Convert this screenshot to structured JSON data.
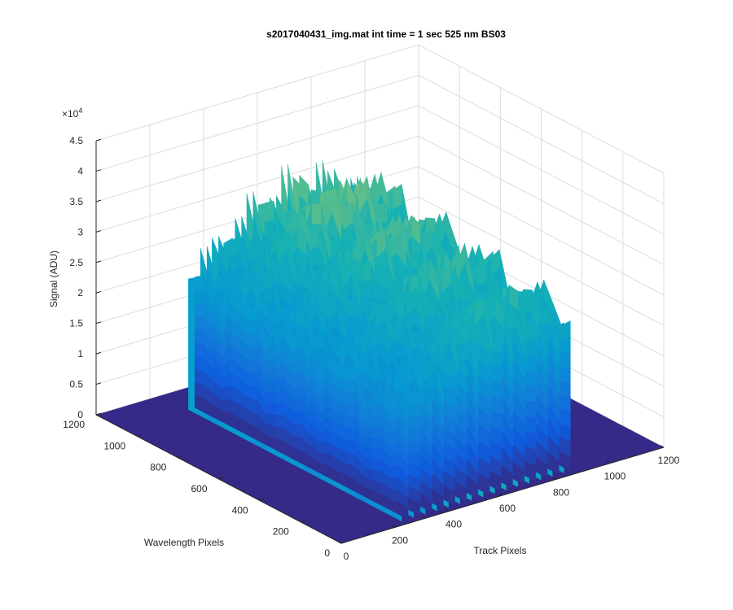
{
  "chart_data": {
    "type": "surface",
    "title": "s2017040431_img.mat int time = 1 sec  525 nm BS03",
    "xlabel": "Track Pixels",
    "ylabel": "Wavelength Pixels",
    "zlabel": "Signal (ADU)",
    "xlim": [
      0,
      1200
    ],
    "ylim": [
      0,
      1200
    ],
    "zlim": [
      0,
      45000
    ],
    "x_ticks": [
      "0",
      "200",
      "400",
      "600",
      "800",
      "1000",
      "1200"
    ],
    "y_ticks": [
      "0",
      "200",
      "400",
      "600",
      "800",
      "1000",
      "1200"
    ],
    "z_ticks": [
      "0",
      "0.5",
      "1",
      "1.5",
      "2",
      "2.5",
      "3",
      "3.5",
      "4",
      "4.5"
    ],
    "z_exponent_base": "×10",
    "z_exponent_power": "4",
    "grid": true,
    "colormap": "parula",
    "tracks": {
      "x_centers": [
        255,
        300,
        343,
        386,
        429,
        472,
        515,
        558,
        601,
        644,
        687,
        730,
        773,
        816,
        859
      ],
      "y_range": [
        24,
        1068
      ],
      "peak_signal": [
        25000,
        27000,
        28000,
        30000,
        32000,
        33500,
        35000,
        36000,
        37000,
        37500,
        37000,
        37500,
        36000,
        35500,
        35000
      ],
      "background_signal": 0
    }
  }
}
